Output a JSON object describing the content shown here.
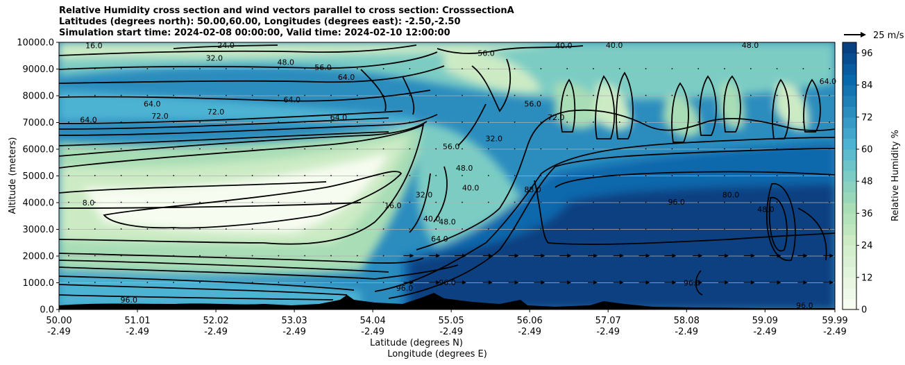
{
  "title_lines": [
    "Relative Humidity cross section and wind vectors parallel to cross section: CrosssectionA",
    "Latitudes (degrees north): 50.00,60.00, Longitudes (degrees east): -2.50,-2.50",
    "Simulation start time: 2024-02-08 00:00:00, Valid time: 2024-02-10 12:00:00"
  ],
  "chart_data": {
    "type": "contourf",
    "title": "Relative Humidity cross section and wind vectors parallel to cross section: CrosssectionA",
    "xlabel": "Latitude (degrees N)",
    "xlabel2": "Longitude (degrees E)",
    "ylabel": "Altitude (meters)",
    "xlim": [
      50.0,
      59.99
    ],
    "ylim": [
      0,
      10000
    ],
    "grid": "horizontal",
    "x_ticks": [
      {
        "lat": "50.00",
        "lon": "-2.49"
      },
      {
        "lat": "51.01",
        "lon": "-2.49"
      },
      {
        "lat": "52.02",
        "lon": "-2.49"
      },
      {
        "lat": "53.03",
        "lon": "-2.49"
      },
      {
        "lat": "54.04",
        "lon": "-2.49"
      },
      {
        "lat": "55.05",
        "lon": "-2.49"
      },
      {
        "lat": "56.06",
        "lon": "-2.49"
      },
      {
        "lat": "57.07",
        "lon": "-2.49"
      },
      {
        "lat": "58.08",
        "lon": "-2.49"
      },
      {
        "lat": "59.09",
        "lon": "-2.49"
      },
      {
        "lat": "59.99",
        "lon": "-2.49"
      }
    ],
    "y_ticks": [
      "0.0",
      "1000.0",
      "2000.0",
      "3000.0",
      "4000.0",
      "5000.0",
      "6000.0",
      "7000.0",
      "8000.0",
      "9000.0",
      "10000.0"
    ],
    "colorbar": {
      "label": "Relative Humidity %",
      "min": 0,
      "max": 100,
      "ticks": [
        "0",
        "12",
        "24",
        "36",
        "48",
        "60",
        "72",
        "84",
        "96"
      ],
      "colors": [
        "#f7fcf0",
        "#e0f3db",
        "#ccebc5",
        "#a8ddb5",
        "#7bccc4",
        "#4eb3d3",
        "#2b8cbe",
        "#0868ac",
        "#084081"
      ]
    },
    "quiver_key": "25 m/s",
    "contour_labels": [
      {
        "text": "16.0",
        "lat": 50.45,
        "alt": 9880
      },
      {
        "text": "24.0",
        "lat": 52.15,
        "alt": 9900
      },
      {
        "text": "32.0",
        "lat": 52.0,
        "alt": 9420
      },
      {
        "text": "48.0",
        "lat": 52.92,
        "alt": 9260
      },
      {
        "text": "56.0",
        "lat": 53.4,
        "alt": 9070
      },
      {
        "text": "64.0",
        "lat": 53.7,
        "alt": 8700
      },
      {
        "text": "64.0",
        "lat": 53.0,
        "alt": 7860
      },
      {
        "text": "64.0",
        "lat": 51.2,
        "alt": 7700
      },
      {
        "text": "72.0",
        "lat": 51.3,
        "alt": 7250
      },
      {
        "text": "72.0",
        "lat": 52.02,
        "alt": 7400
      },
      {
        "text": "64.0",
        "lat": 50.38,
        "alt": 7100
      },
      {
        "text": "64.0",
        "lat": 53.6,
        "alt": 7200
      },
      {
        "text": "16.0",
        "lat": 54.3,
        "alt": 3900
      },
      {
        "text": "8.0",
        "lat": 50.38,
        "alt": 4000
      },
      {
        "text": "32.0",
        "lat": 54.7,
        "alt": 4300
      },
      {
        "text": "40.0",
        "lat": 54.8,
        "alt": 3400
      },
      {
        "text": "48.0",
        "lat": 55.0,
        "alt": 3290
      },
      {
        "text": "40.0",
        "lat": 55.3,
        "alt": 4560
      },
      {
        "text": "48.0",
        "lat": 55.22,
        "alt": 5300
      },
      {
        "text": "32.0",
        "lat": 55.6,
        "alt": 6400
      },
      {
        "text": "56.0",
        "lat": 55.05,
        "alt": 6100
      },
      {
        "text": "64.0",
        "lat": 54.9,
        "alt": 2650
      },
      {
        "text": "88.0",
        "lat": 56.1,
        "alt": 4500
      },
      {
        "text": "96.0",
        "lat": 57.95,
        "alt": 4020
      },
      {
        "text": "96.0",
        "lat": 58.15,
        "alt": 1000
      },
      {
        "text": "96.0",
        "lat": 55.0,
        "alt": 1010
      },
      {
        "text": "96.0",
        "lat": 54.45,
        "alt": 800
      },
      {
        "text": "96.0",
        "lat": 50.9,
        "alt": 370
      },
      {
        "text": "96.0",
        "lat": 59.6,
        "alt": 150
      },
      {
        "text": "56.0",
        "lat": 56.1,
        "alt": 7700
      },
      {
        "text": "72.0",
        "lat": 56.4,
        "alt": 7200
      },
      {
        "text": "56.0",
        "lat": 55.5,
        "alt": 9600
      },
      {
        "text": "40.0",
        "lat": 57.15,
        "alt": 9900
      },
      {
        "text": "48.0",
        "lat": 58.9,
        "alt": 9900
      },
      {
        "text": "40.0",
        "lat": 56.5,
        "alt": 9880
      },
      {
        "text": "64.0",
        "lat": 59.9,
        "alt": 8550
      },
      {
        "text": "48.0",
        "lat": 59.1,
        "alt": 3750
      },
      {
        "text": "80.0",
        "lat": 58.65,
        "alt": 4300
      }
    ]
  }
}
